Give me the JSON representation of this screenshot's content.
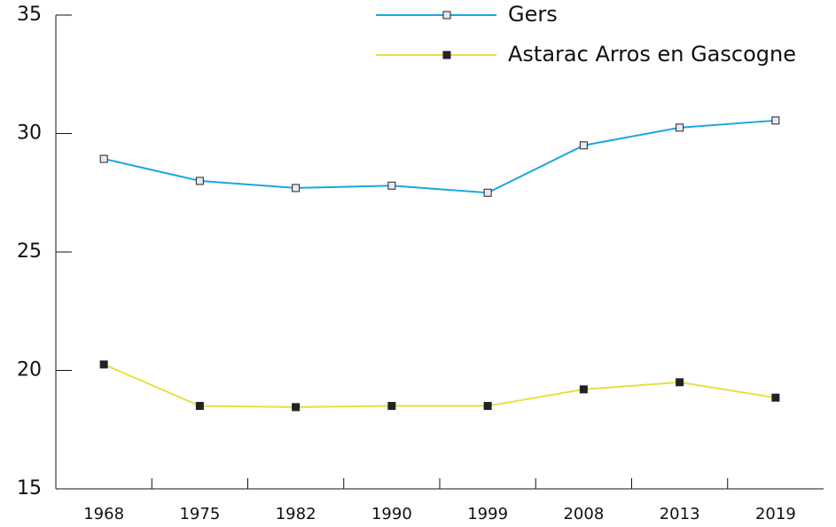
{
  "chart_data": {
    "type": "line",
    "categories": [
      "1968",
      "1975",
      "1982",
      "1990",
      "1999",
      "2008",
      "2013",
      "2019"
    ],
    "series": [
      {
        "name": "Gers",
        "color": "#1aa7e0",
        "marker_fill": "#e8e8f0",
        "values": [
          28.93,
          28.0,
          27.7,
          27.8,
          27.5,
          29.5,
          30.25,
          30.55
        ]
      },
      {
        "name": "Astarac Arros en Gascogne",
        "color": "#e6e040",
        "marker_fill": "#222222",
        "values": [
          20.25,
          18.5,
          18.45,
          18.5,
          18.5,
          19.2,
          19.5,
          18.85
        ]
      }
    ],
    "ylim": [
      15,
      35
    ],
    "yticks": [
      15,
      20,
      25,
      30,
      35
    ],
    "legend": "upper right"
  }
}
